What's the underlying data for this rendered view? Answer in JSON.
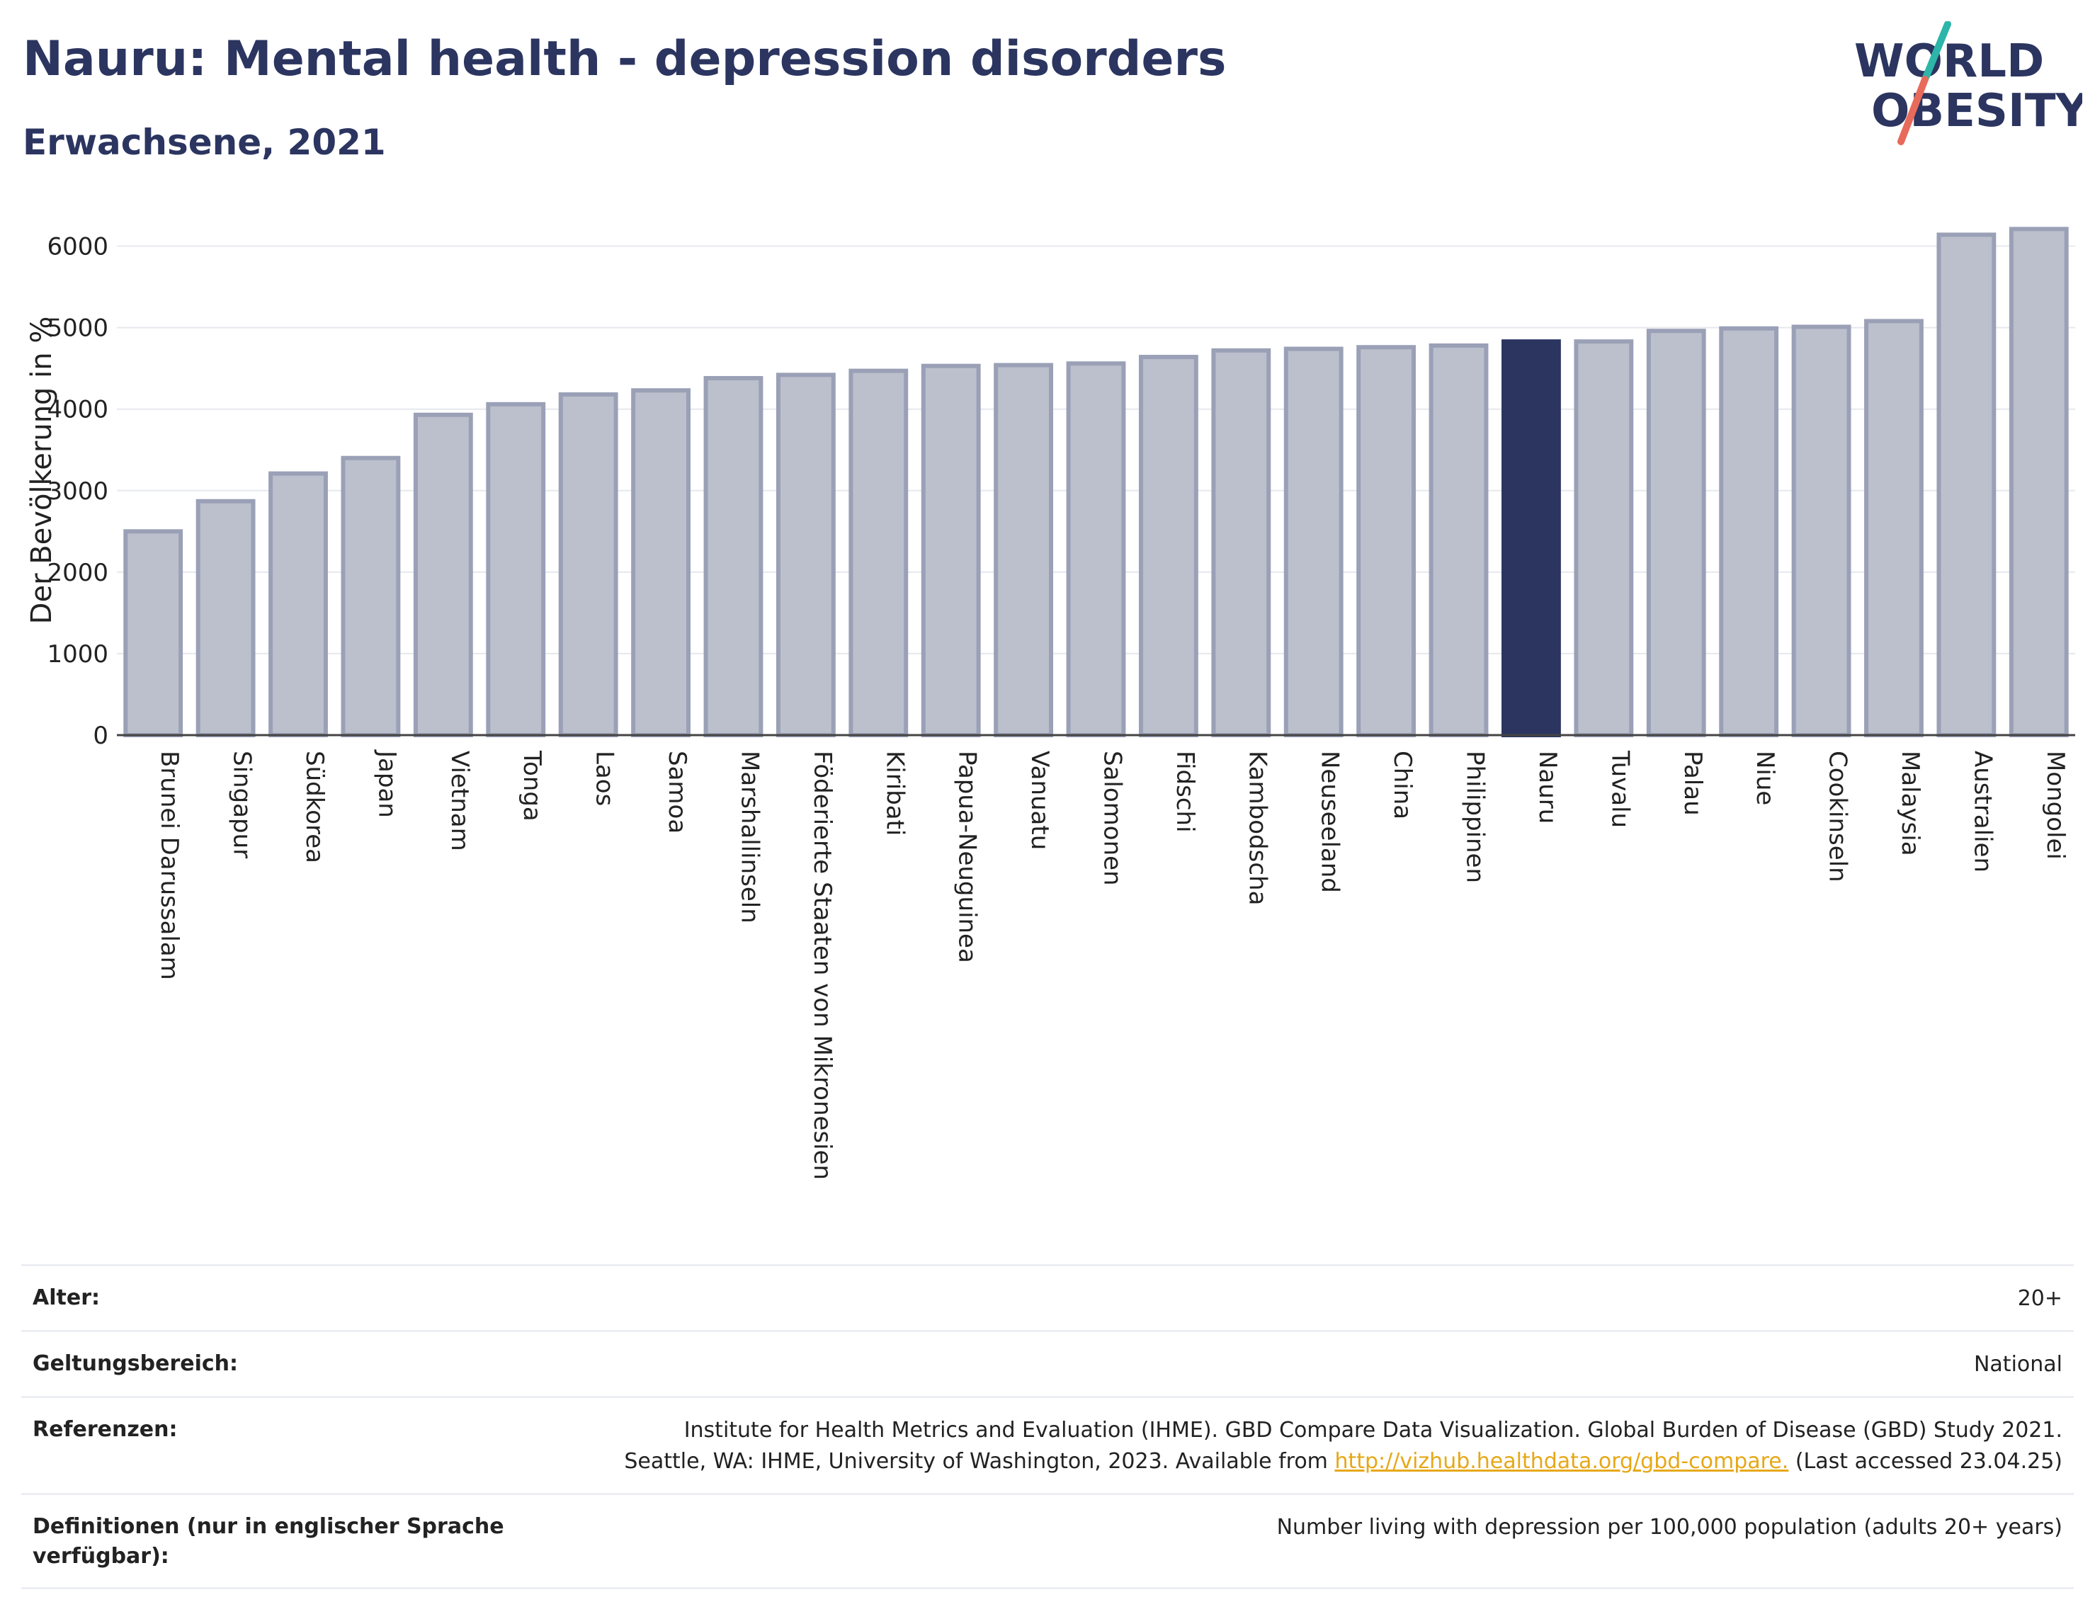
{
  "header": {
    "title": "Nauru: Mental health - depression disorders",
    "subtitle": "Erwachsene, 2021"
  },
  "logo": {
    "line1": "WORLD",
    "line2": "OBESITY"
  },
  "colors": {
    "bar": "#bcc0cc",
    "bar_stroke": "#9aa0b6",
    "highlight": "#2b3560",
    "accent_teal": "#2cb5a8",
    "accent_coral": "#e86a5a"
  },
  "chart_data": {
    "type": "bar",
    "title": "Nauru: Mental health - depression disorders",
    "subtitle": "Erwachsene, 2021",
    "ylabel": "Der Bevölkerung in %",
    "xlabel": "",
    "ylim": [
      0,
      6500
    ],
    "yticks": [
      0,
      1000,
      2000,
      3000,
      4000,
      5000,
      6000
    ],
    "grid": true,
    "highlight": "Nauru",
    "categories": [
      "Brunei Darussalam",
      "Singapur",
      "Südkorea",
      "Japan",
      "Vietnam",
      "Tonga",
      "Laos",
      "Samoa",
      "Marshallinseln",
      "Föderierte Staaten von Mikronesien",
      "Kiribati",
      "Papua-Neuguinea",
      "Vanuatu",
      "Salomonen",
      "Fidschi",
      "Kambodscha",
      "Neuseeland",
      "China",
      "Philippinen",
      "Nauru",
      "Tuvalu",
      "Palau",
      "Niue",
      "Cookinseln",
      "Malaysia",
      "Australien",
      "Mongolei"
    ],
    "values": [
      2500,
      2870,
      3210,
      3400,
      3930,
      4060,
      4180,
      4230,
      4380,
      4420,
      4470,
      4530,
      4540,
      4560,
      4640,
      4720,
      4740,
      4760,
      4780,
      4830,
      4830,
      4960,
      4990,
      5010,
      5080,
      6140,
      6210
    ]
  },
  "meta": {
    "age_label": "Alter:",
    "age_value": "20+",
    "scope_label": "Geltungsbereich:",
    "scope_value": "National",
    "ref_label": "Referenzen:",
    "ref_line1": "Institute for Health Metrics and Evaluation (IHME). GBD Compare Data Visualization. Global Burden of Disease (GBD) Study 2021.",
    "ref_line2_pre": "Seattle, WA: IHME, University of Washington, 2023. Available from ",
    "ref_link": "http://vizhub.healthdata.org/gbd-compare.",
    "ref_line2_post": " (Last accessed 23.04.25)",
    "def_label": "Definitionen (nur in englischer Sprache verfügbar):",
    "def_value": "Number living with depression per 100,000 population (adults 20+ years)"
  }
}
